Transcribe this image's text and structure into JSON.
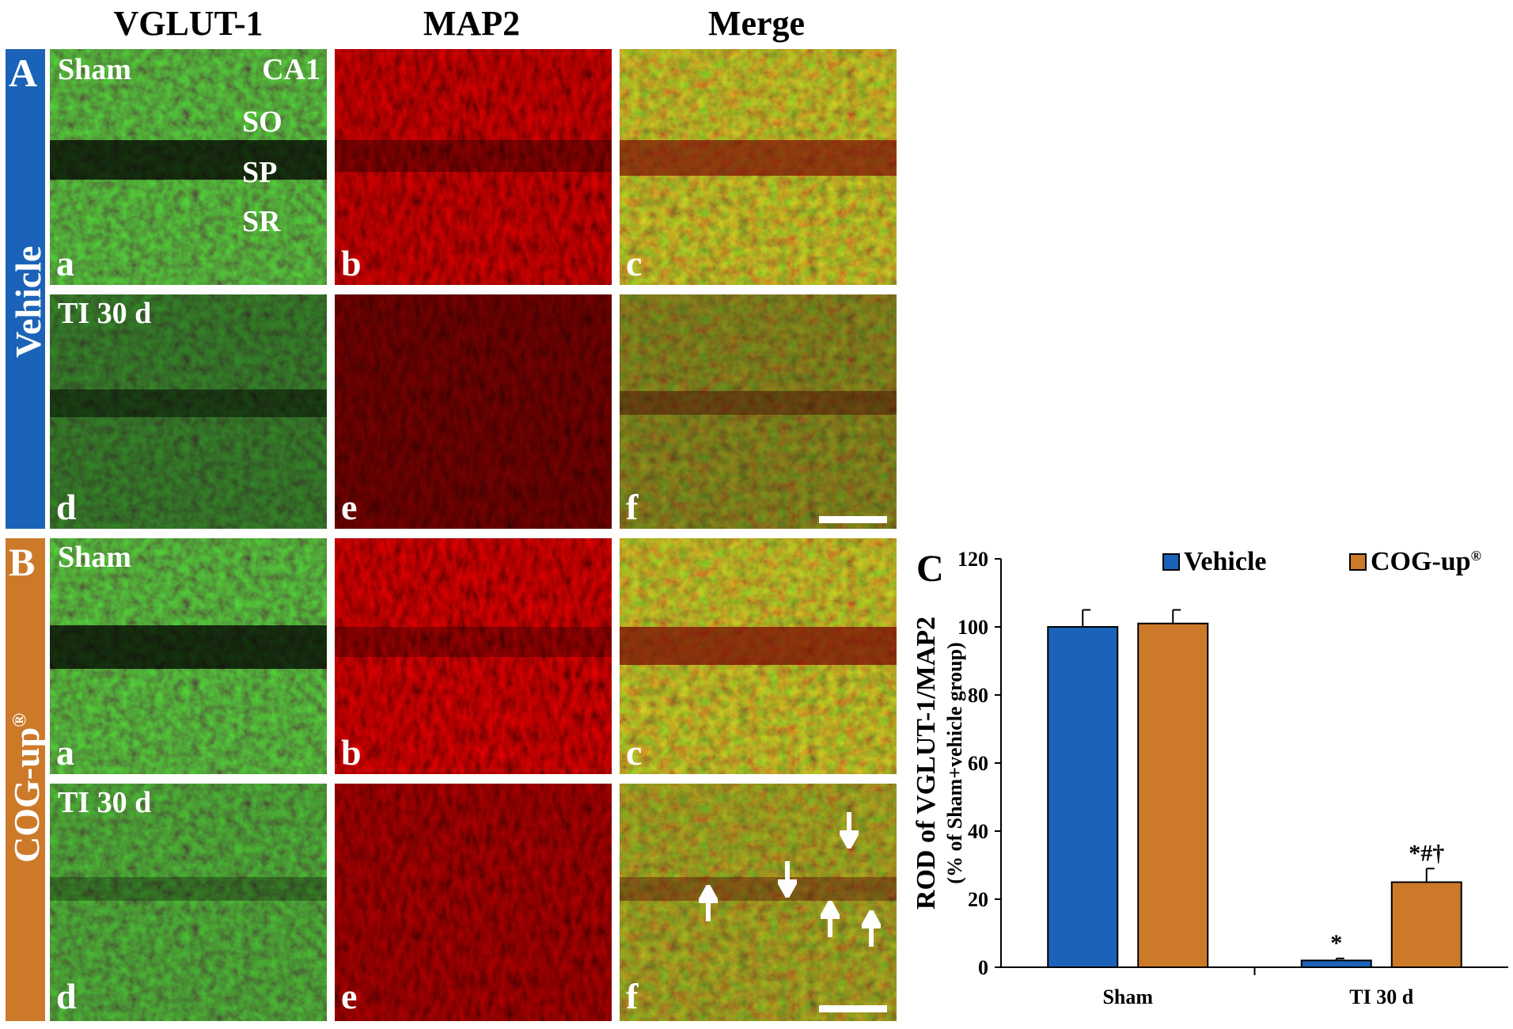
{
  "columns": [
    "VGLUT-1",
    "MAP2",
    "Merge"
  ],
  "groups": {
    "A": {
      "letter": "A",
      "name": "Vehicle",
      "color": "#1b63b8"
    },
    "B": {
      "letter": "B",
      "name": "COG-up",
      "sup": "®",
      "color": "#cc7a2a"
    }
  },
  "row_labels": {
    "sham": "Sham",
    "ti": "TI 30 d"
  },
  "region_labels": {
    "ca1": "CA1",
    "so": "SO",
    "sp": "SP",
    "sr": "SR"
  },
  "panel_letters": {
    "a": "a",
    "b": "b",
    "c": "c",
    "d": "d",
    "e": "e",
    "f": "f"
  },
  "chart_panel_letter": "C",
  "chart_data": {
    "type": "bar",
    "categories": [
      "Sham",
      "TI 30 d"
    ],
    "series": [
      {
        "name": "Vehicle",
        "color": "#1b63b8",
        "values": [
          100,
          2
        ],
        "errors": [
          5,
          0.6
        ],
        "annotations": [
          "",
          "*"
        ]
      },
      {
        "name": "COG-up",
        "name_sup": "®",
        "color": "#cc7a2a",
        "values": [
          101,
          25
        ],
        "errors": [
          4,
          4
        ],
        "annotations": [
          "",
          "*#†"
        ]
      }
    ],
    "ylabel": "ROD of VGLUT-1/MAP2",
    "ylabel_sub": "(% of Sham+vehicle group)",
    "ylim": [
      0,
      120
    ],
    "yticks": [
      0,
      20,
      40,
      60,
      80,
      100,
      120
    ],
    "legend_position": "top",
    "grid": false
  }
}
